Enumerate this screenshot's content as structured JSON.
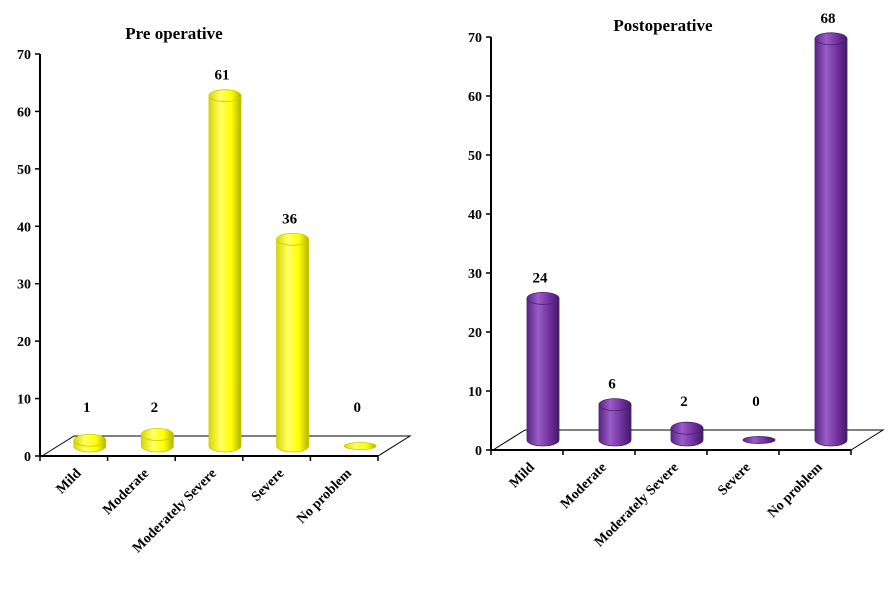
{
  "colors": {
    "pre_bar": "#ffff00",
    "pre_bar_dark": "#c9c900",
    "post_bar": "#7030a0",
    "post_bar_dark": "#4b1f70",
    "axis": "#000000"
  },
  "chart_data": [
    {
      "type": "bar",
      "title": "Pre operative",
      "categories": [
        "Mild",
        "Moderate",
        "Moderately Severe",
        "Severe",
        "No problem"
      ],
      "values": [
        1,
        2,
        61,
        36,
        0
      ],
      "ylim": [
        0,
        70
      ],
      "yticks": [
        "0",
        "10",
        "20",
        "30",
        "40",
        "50",
        "60",
        "70"
      ],
      "xlabel": "",
      "ylabel": "",
      "grid": false,
      "style": "3d-cylinder",
      "color": "#ffff00"
    },
    {
      "type": "bar",
      "title": "Postoperative",
      "categories": [
        "Mild",
        "Moderate",
        "Moderately Severe",
        "Severe",
        "No problem"
      ],
      "values": [
        24,
        6,
        2,
        0,
        68
      ],
      "ylim": [
        0,
        70
      ],
      "yticks": [
        "0",
        "10",
        "20",
        "30",
        "40",
        "50",
        "60",
        "70"
      ],
      "xlabel": "",
      "ylabel": "",
      "grid": false,
      "style": "3d-cylinder",
      "color": "#7030a0"
    }
  ]
}
